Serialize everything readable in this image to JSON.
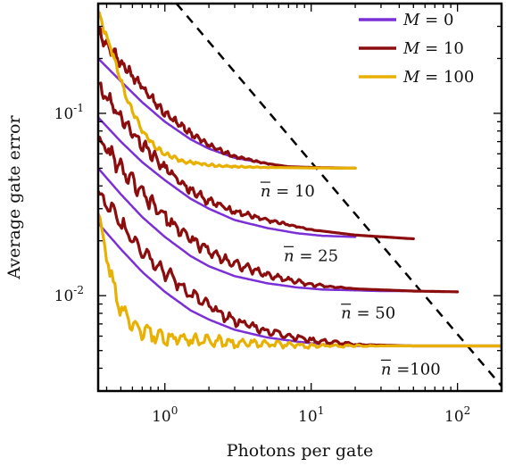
{
  "chart_data": {
    "type": "line",
    "xlabel": "Photons per gate",
    "ylabel": "Average gate error",
    "xscale": "log",
    "yscale": "log",
    "xlim": [
      0.35,
      200
    ],
    "ylim": [
      0.003,
      0.4
    ],
    "x_ticks": [
      {
        "base": "10",
        "exp": "0",
        "value": 1
      },
      {
        "base": "10",
        "exp": "1",
        "value": 10
      },
      {
        "base": "10",
        "exp": "2",
        "value": 100
      }
    ],
    "y_ticks": [
      {
        "base": "10",
        "exp": "-1",
        "value": 0.1
      },
      {
        "base": "10",
        "exp": "-2",
        "value": 0.01
      }
    ],
    "legend": {
      "position": "top-right",
      "entries": [
        {
          "prefix": "M",
          "eq": " = ",
          "value": "0",
          "color": "#7b2fd6"
        },
        {
          "prefix": "M",
          "eq": " = ",
          "value": "10",
          "color": "#8b0d0d"
        },
        {
          "prefix": "M",
          "eq": " = ",
          "value": "100",
          "color": "#e8b000"
        }
      ]
    },
    "annotations": [
      {
        "symbol": "n",
        "eq": " = ",
        "value": "10",
        "x": 4.5,
        "y": 0.035
      },
      {
        "symbol": "n",
        "eq": " = ",
        "value": "25",
        "x": 6.5,
        "y": 0.0155
      },
      {
        "symbol": "n",
        "eq": " = ",
        "value": "50",
        "x": 16,
        "y": 0.0075
      },
      {
        "symbol": "n",
        "eq": " =",
        "value": "100",
        "x": 30,
        "y": 0.0037
      }
    ],
    "reference_line": {
      "style": "dashed",
      "color": "#000000",
      "points": [
        [
          1.2,
          0.4
        ],
        [
          230,
          0.0028
        ]
      ]
    },
    "series": [
      {
        "group": "10",
        "model": "M = 0",
        "color": "#7b2fd6",
        "noise": 0,
        "x": [
          0.35,
          0.5,
          0.7,
          1,
          1.5,
          2,
          3,
          5,
          7,
          10,
          15,
          20
        ],
        "y": [
          0.2,
          0.15,
          0.115,
          0.09,
          0.072,
          0.064,
          0.057,
          0.053,
          0.051,
          0.0505,
          0.0502,
          0.05
        ]
      },
      {
        "group": "10",
        "model": "M = 10",
        "color": "#8b0d0d",
        "noise": 0.04,
        "x": [
          0.35,
          0.5,
          0.7,
          1,
          1.5,
          2,
          3,
          5,
          7,
          10,
          15,
          20
        ],
        "y": [
          0.28,
          0.19,
          0.14,
          0.1,
          0.078,
          0.067,
          0.058,
          0.053,
          0.051,
          0.0505,
          0.0502,
          0.05
        ]
      },
      {
        "group": "10",
        "model": "M = 100",
        "color": "#e8b000",
        "noise": 0.02,
        "x": [
          0.35,
          0.45,
          0.55,
          0.7,
          0.85,
          1,
          1.3,
          2,
          3,
          5,
          10,
          20
        ],
        "y": [
          0.36,
          0.2,
          0.12,
          0.08,
          0.066,
          0.06,
          0.055,
          0.052,
          0.051,
          0.0505,
          0.0502,
          0.05
        ]
      },
      {
        "group": "25",
        "model": "M = 0",
        "color": "#7b2fd6",
        "noise": 0,
        "x": [
          0.35,
          0.5,
          0.7,
          1,
          1.5,
          2,
          3,
          5,
          8,
          12,
          20
        ],
        "y": [
          0.095,
          0.07,
          0.054,
          0.043,
          0.034,
          0.03,
          0.026,
          0.0235,
          0.022,
          0.0213,
          0.021
        ]
      },
      {
        "group": "25",
        "model": "M = 10",
        "color": "#8b0d0d",
        "noise": 0.05,
        "x": [
          0.35,
          0.5,
          0.7,
          1,
          1.5,
          2,
          3,
          5,
          10,
          20,
          50
        ],
        "y": [
          0.14,
          0.095,
          0.068,
          0.05,
          0.038,
          0.033,
          0.029,
          0.026,
          0.023,
          0.0215,
          0.0205
        ]
      },
      {
        "group": "50",
        "model": "M = 0",
        "color": "#7b2fd6",
        "noise": 0,
        "x": [
          0.35,
          0.5,
          0.7,
          1,
          1.5,
          2,
          3,
          5,
          8,
          12,
          20,
          30,
          50
        ],
        "y": [
          0.05,
          0.036,
          0.027,
          0.021,
          0.0165,
          0.0145,
          0.0128,
          0.0117,
          0.0111,
          0.0108,
          0.0107,
          0.0106,
          0.0106
        ]
      },
      {
        "group": "50",
        "model": "M = 10",
        "color": "#8b0d0d",
        "noise": 0.06,
        "x": [
          0.35,
          0.5,
          0.7,
          1,
          1.5,
          2,
          3,
          5,
          10,
          20,
          50,
          100
        ],
        "y": [
          0.072,
          0.05,
          0.036,
          0.027,
          0.0205,
          0.0175,
          0.015,
          0.013,
          0.0115,
          0.0109,
          0.0106,
          0.0105
        ]
      },
      {
        "group": "100",
        "model": "M = 0",
        "color": "#7b2fd6",
        "noise": 0,
        "x": [
          0.35,
          0.5,
          0.7,
          1,
          1.5,
          2,
          3,
          5,
          8,
          12,
          20,
          40,
          100
        ],
        "y": [
          0.025,
          0.018,
          0.0135,
          0.0105,
          0.0083,
          0.0074,
          0.0065,
          0.0059,
          0.0056,
          0.0054,
          0.0053,
          0.0053,
          0.0053
        ]
      },
      {
        "group": "100",
        "model": "M = 10",
        "color": "#8b0d0d",
        "noise": 0.06,
        "x": [
          0.35,
          0.5,
          0.7,
          1,
          1.5,
          2,
          3,
          5,
          10,
          20,
          50,
          100,
          200
        ],
        "y": [
          0.036,
          0.025,
          0.018,
          0.0135,
          0.0102,
          0.0087,
          0.0073,
          0.0064,
          0.0057,
          0.0054,
          0.0053,
          0.0053,
          0.0053
        ]
      },
      {
        "group": "100",
        "model": "M = 100",
        "color": "#e8b000",
        "noise": 0.06,
        "x": [
          0.35,
          0.4,
          0.45,
          0.5,
          0.6,
          0.8,
          1,
          1.5,
          3,
          10,
          50,
          200
        ],
        "y": [
          0.03,
          0.016,
          0.011,
          0.0085,
          0.0068,
          0.0061,
          0.0059,
          0.0057,
          0.0055,
          0.0053,
          0.0053,
          0.0053
        ]
      }
    ]
  }
}
